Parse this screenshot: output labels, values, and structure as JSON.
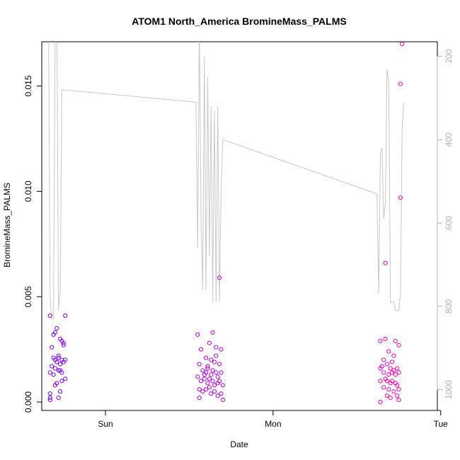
{
  "chart_data": {
    "type": "scatter",
    "title": "ATOM1 North_America BromineMass_PALMS",
    "xlabel": "Date",
    "ylabel": "BromineMass_PALMS",
    "x_unit": "days",
    "xlim": [
      -0.38,
      1.98
    ],
    "ylim": [
      -0.0004,
      0.0171
    ],
    "x_ticks": [
      {
        "value": 0,
        "label": "Sun"
      },
      {
        "value": 1,
        "label": "Mon"
      },
      {
        "value": 2,
        "label": "Tue"
      }
    ],
    "y_ticks": [
      {
        "value": 0,
        "label": "0.000"
      },
      {
        "value": 0.005,
        "label": "0.005"
      },
      {
        "value": 0.01,
        "label": "0.010"
      },
      {
        "value": 0.015,
        "label": "0.015"
      }
    ],
    "y2_label": "",
    "y2_lim": [
      1050,
      165
    ],
    "y2_ticks": [
      {
        "value": 200,
        "label": "200"
      },
      {
        "value": 400,
        "label": "400"
      },
      {
        "value": 600,
        "label": "600"
      },
      {
        "value": 800,
        "label": "800"
      },
      {
        "value": 1000,
        "label": "1000"
      }
    ],
    "colors": {
      "gradient_start": "#7a00ff",
      "gradient_end": "#ff00b0",
      "pressure_line": "#c8c8c8",
      "axis": "#000000",
      "right_axis": "#b3b3b3"
    },
    "series": [
      {
        "kind": "points",
        "values": [
          {
            "x": -0.33,
            "y": 0.0041
          },
          {
            "x": -0.31,
            "y": 0.0032
          },
          {
            "x": -0.3,
            "y": 0.0033
          },
          {
            "x": -0.29,
            "y": 0.0035
          },
          {
            "x": -0.27,
            "y": 0.003
          },
          {
            "x": -0.26,
            "y": 0.0029
          },
          {
            "x": -0.25,
            "y": 0.0028
          },
          {
            "x": -0.24,
            "y": 0.0041
          },
          {
            "x": -0.32,
            "y": 0.0026
          },
          {
            "x": -0.28,
            "y": 0.0022
          },
          {
            "x": -0.31,
            "y": 0.0021
          },
          {
            "x": -0.3,
            "y": 0.002
          },
          {
            "x": -0.29,
            "y": 0.0019
          },
          {
            "x": -0.28,
            "y": 0.0021
          },
          {
            "x": -0.27,
            "y": 0.0018
          },
          {
            "x": -0.26,
            "y": 0.002
          },
          {
            "x": -0.25,
            "y": 0.0019
          },
          {
            "x": -0.24,
            "y": 0.002
          },
          {
            "x": -0.32,
            "y": 0.0017
          },
          {
            "x": -0.3,
            "y": 0.0016
          },
          {
            "x": -0.28,
            "y": 0.0015
          },
          {
            "x": -0.26,
            "y": 0.0014
          },
          {
            "x": -0.27,
            "y": 0.0015
          },
          {
            "x": -0.33,
            "y": 0.0014
          },
          {
            "x": -0.24,
            "y": 0.0011
          },
          {
            "x": -0.26,
            "y": 0.001
          },
          {
            "x": -0.29,
            "y": 0.0009
          },
          {
            "x": -0.3,
            "y": 0.0008
          },
          {
            "x": -0.27,
            "y": 0.0005
          },
          {
            "x": -0.28,
            "y": 0.0002
          },
          {
            "x": -0.33,
            "y": 0.0004
          },
          {
            "x": -0.33,
            "y": 0.0002
          },
          {
            "x": -0.33,
            "y": 0.0001
          },
          {
            "x": -0.31,
            "y": 0.0013
          },
          {
            "x": -0.25,
            "y": 0.0027
          }
        ]
      },
      {
        "kind": "points",
        "values": [
          {
            "x": 0.55,
            "y": 0.0032
          },
          {
            "x": 0.57,
            "y": 0.0025
          },
          {
            "x": 0.6,
            "y": 0.0021
          },
          {
            "x": 0.62,
            "y": 0.0028
          },
          {
            "x": 0.63,
            "y": 0.002
          },
          {
            "x": 0.64,
            "y": 0.0033
          },
          {
            "x": 0.65,
            "y": 0.0019
          },
          {
            "x": 0.66,
            "y": 0.0026
          },
          {
            "x": 0.68,
            "y": 0.0018
          },
          {
            "x": 0.69,
            "y": 0.0025
          },
          {
            "x": 0.56,
            "y": 0.0018
          },
          {
            "x": 0.58,
            "y": 0.0015
          },
          {
            "x": 0.6,
            "y": 0.0014
          },
          {
            "x": 0.61,
            "y": 0.0016
          },
          {
            "x": 0.63,
            "y": 0.0013
          },
          {
            "x": 0.64,
            "y": 0.0015
          },
          {
            "x": 0.66,
            "y": 0.0014
          },
          {
            "x": 0.67,
            "y": 0.0012
          },
          {
            "x": 0.69,
            "y": 0.0014
          },
          {
            "x": 0.55,
            "y": 0.0012
          },
          {
            "x": 0.57,
            "y": 0.001
          },
          {
            "x": 0.59,
            "y": 0.0011
          },
          {
            "x": 0.61,
            "y": 0.0009
          },
          {
            "x": 0.62,
            "y": 0.0011
          },
          {
            "x": 0.64,
            "y": 0.001
          },
          {
            "x": 0.65,
            "y": 0.0008
          },
          {
            "x": 0.67,
            "y": 0.0009
          },
          {
            "x": 0.68,
            "y": 0.001
          },
          {
            "x": 0.7,
            "y": 0.0008
          },
          {
            "x": 0.56,
            "y": 0.0006
          },
          {
            "x": 0.58,
            "y": 0.0005
          },
          {
            "x": 0.6,
            "y": 0.0006
          },
          {
            "x": 0.63,
            "y": 0.0004
          },
          {
            "x": 0.65,
            "y": 0.0005
          },
          {
            "x": 0.67,
            "y": 0.0003
          },
          {
            "x": 0.69,
            "y": 0.0004
          },
          {
            "x": 0.56,
            "y": 0.0002
          },
          {
            "x": 0.61,
            "y": 0.0017
          },
          {
            "x": 0.66,
            "y": 0.0022
          },
          {
            "x": 0.7,
            "y": 0.0001
          },
          {
            "x": 0.68,
            "y": 0.0059
          },
          {
            "x": 0.62,
            "y": 0.0007
          },
          {
            "x": 0.59,
            "y": 0.0013
          }
        ]
      },
      {
        "kind": "points",
        "values": [
          {
            "x": 1.64,
            "y": 0.0029
          },
          {
            "x": 1.67,
            "y": 0.003
          },
          {
            "x": 1.73,
            "y": 0.0029
          },
          {
            "x": 1.75,
            "y": 0.0027
          },
          {
            "x": 1.69,
            "y": 0.0024
          },
          {
            "x": 1.72,
            "y": 0.0022
          },
          {
            "x": 1.66,
            "y": 0.002
          },
          {
            "x": 1.71,
            "y": 0.0019
          },
          {
            "x": 1.65,
            "y": 0.0017
          },
          {
            "x": 1.68,
            "y": 0.0018
          },
          {
            "x": 1.7,
            "y": 0.0016
          },
          {
            "x": 1.72,
            "y": 0.0015
          },
          {
            "x": 1.74,
            "y": 0.0016
          },
          {
            "x": 1.75,
            "y": 0.0014
          },
          {
            "x": 1.64,
            "y": 0.0016
          },
          {
            "x": 1.66,
            "y": 0.0014
          },
          {
            "x": 1.69,
            "y": 0.0013
          },
          {
            "x": 1.71,
            "y": 0.0014
          },
          {
            "x": 1.73,
            "y": 0.0013
          },
          {
            "x": 1.67,
            "y": 0.0011
          },
          {
            "x": 1.68,
            "y": 0.001
          },
          {
            "x": 1.7,
            "y": 0.0009
          },
          {
            "x": 1.71,
            "y": 0.001
          },
          {
            "x": 1.73,
            "y": 0.0009
          },
          {
            "x": 1.74,
            "y": 0.0008
          },
          {
            "x": 1.64,
            "y": 0.001
          },
          {
            "x": 1.66,
            "y": 0.0007
          },
          {
            "x": 1.69,
            "y": 0.0006
          },
          {
            "x": 1.72,
            "y": 0.0005
          },
          {
            "x": 1.75,
            "y": 0.0006
          },
          {
            "x": 1.68,
            "y": 0.0003
          },
          {
            "x": 1.7,
            "y": 0.0002
          },
          {
            "x": 1.74,
            "y": 0.0003
          },
          {
            "x": 1.75,
            "y": 0.0001
          },
          {
            "x": 1.64,
            "y": 0.0
          },
          {
            "x": 1.67,
            "y": 0.0066
          },
          {
            "x": 1.76,
            "y": 0.0097
          },
          {
            "x": 1.76,
            "y": 0.0151
          },
          {
            "x": 1.77,
            "y": 0.017
          }
        ]
      }
    ],
    "pressure_line": {
      "axis": "right",
      "points": [
        [
          -0.34,
          100
        ],
        [
          -0.33,
          780
        ],
        [
          -0.32,
          830
        ],
        [
          -0.31,
          830
        ],
        [
          -0.3,
          150
        ],
        [
          -0.29,
          100
        ],
        [
          -0.28,
          810
        ],
        [
          -0.27,
          760
        ],
        [
          -0.26,
          280
        ],
        [
          0.54,
          310
        ],
        [
          0.55,
          660
        ],
        [
          0.56,
          120
        ],
        [
          0.57,
          580
        ],
        [
          0.58,
          760
        ],
        [
          0.59,
          200
        ],
        [
          0.6,
          760
        ],
        [
          0.61,
          250
        ],
        [
          0.62,
          680
        ],
        [
          0.63,
          320
        ],
        [
          0.64,
          790
        ],
        [
          0.65,
          330
        ],
        [
          0.66,
          790
        ],
        [
          0.67,
          320
        ],
        [
          0.68,
          790
        ],
        [
          0.69,
          520
        ],
        [
          0.7,
          400
        ],
        [
          1.62,
          530
        ],
        [
          1.63,
          770
        ],
        [
          1.64,
          430
        ],
        [
          1.65,
          420
        ],
        [
          1.66,
          590
        ],
        [
          1.67,
          550
        ],
        [
          1.68,
          230
        ],
        [
          1.69,
          260
        ],
        [
          1.7,
          790
        ],
        [
          1.72,
          790
        ],
        [
          1.73,
          810
        ],
        [
          1.75,
          810
        ],
        [
          1.76,
          770
        ],
        [
          1.77,
          370
        ],
        [
          1.78,
          310
        ]
      ]
    }
  }
}
